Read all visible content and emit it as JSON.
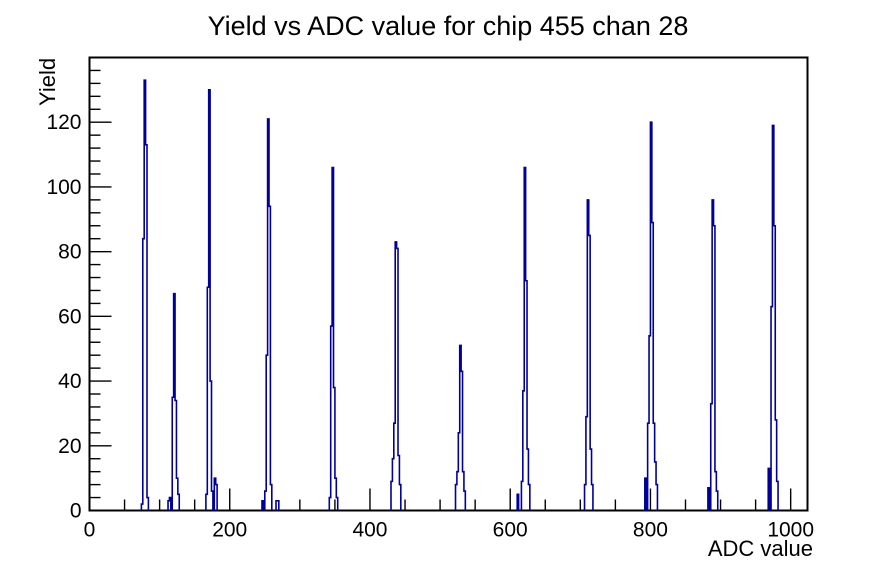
{
  "title": "Yield vs ADC value for chip 455 chan 28",
  "chart_data": {
    "type": "bar",
    "subtype": "histogram-outline",
    "title": "Yield vs ADC value for chip 455 chan 28",
    "xlabel": "ADC value",
    "ylabel": "Yield",
    "xlim": [
      0,
      1024
    ],
    "ylim": [
      0,
      140
    ],
    "x_major_ticks": [
      0,
      200,
      400,
      600,
      800,
      1000
    ],
    "x_major_tick_labels": [
      "0",
      "200",
      "400",
      "600",
      "800",
      "1000"
    ],
    "x_minor_step": 50,
    "y_major_ticks": [
      0,
      20,
      40,
      60,
      80,
      100,
      120
    ],
    "y_major_tick_labels": [
      "0",
      "20",
      "40",
      "60",
      "80",
      "100",
      "120"
    ],
    "y_minor_step": 4,
    "grid": false,
    "legend": false,
    "line_color": "#000099",
    "axis_color": "#000000",
    "background_color": "#ffffff",
    "bin_width": 2,
    "peaks": [
      {
        "adc": 79,
        "yield": 133
      },
      {
        "adc": 121,
        "yield": 67
      },
      {
        "adc": 171,
        "yield": 130
      },
      {
        "adc": 255,
        "yield": 121
      },
      {
        "adc": 347,
        "yield": 106
      },
      {
        "adc": 437,
        "yield": 83
      },
      {
        "adc": 529,
        "yield": 51
      },
      {
        "adc": 621,
        "yield": 106
      },
      {
        "adc": 711,
        "yield": 96
      },
      {
        "adc": 801,
        "yield": 120
      },
      {
        "adc": 889,
        "yield": 96
      },
      {
        "adc": 975,
        "yield": 119
      }
    ],
    "bins": [
      [
        75,
        2
      ],
      [
        77,
        84
      ],
      [
        79,
        133
      ],
      [
        81,
        113
      ],
      [
        83,
        4
      ],
      [
        113,
        3
      ],
      [
        115,
        4
      ],
      [
        119,
        35
      ],
      [
        121,
        67
      ],
      [
        123,
        34
      ],
      [
        125,
        10
      ],
      [
        127,
        5
      ],
      [
        167,
        5
      ],
      [
        169,
        69
      ],
      [
        171,
        130
      ],
      [
        173,
        40
      ],
      [
        175,
        6
      ],
      [
        179,
        10
      ],
      [
        181,
        8
      ],
      [
        247,
        3
      ],
      [
        251,
        6
      ],
      [
        253,
        48
      ],
      [
        255,
        121
      ],
      [
        257,
        94
      ],
      [
        259,
        8
      ],
      [
        267,
        3
      ],
      [
        269,
        3
      ],
      [
        343,
        4
      ],
      [
        345,
        57
      ],
      [
        347,
        106
      ],
      [
        349,
        38
      ],
      [
        351,
        10
      ],
      [
        353,
        4
      ],
      [
        431,
        9
      ],
      [
        433,
        16
      ],
      [
        435,
        27
      ],
      [
        437,
        83
      ],
      [
        439,
        81
      ],
      [
        441,
        17
      ],
      [
        443,
        8
      ],
      [
        523,
        8
      ],
      [
        525,
        12
      ],
      [
        527,
        24
      ],
      [
        529,
        51
      ],
      [
        531,
        43
      ],
      [
        533,
        12
      ],
      [
        535,
        6
      ],
      [
        611,
        5
      ],
      [
        617,
        9
      ],
      [
        619,
        37
      ],
      [
        621,
        106
      ],
      [
        623,
        71
      ],
      [
        625,
        19
      ],
      [
        627,
        8
      ],
      [
        707,
        8
      ],
      [
        709,
        29
      ],
      [
        711,
        96
      ],
      [
        713,
        85
      ],
      [
        715,
        19
      ],
      [
        717,
        8
      ],
      [
        793,
        10
      ],
      [
        797,
        27
      ],
      [
        799,
        54
      ],
      [
        801,
        120
      ],
      [
        803,
        89
      ],
      [
        805,
        27
      ],
      [
        807,
        15
      ],
      [
        809,
        8
      ],
      [
        883,
        7
      ],
      [
        887,
        33
      ],
      [
        889,
        96
      ],
      [
        891,
        88
      ],
      [
        893,
        12
      ],
      [
        895,
        6
      ],
      [
        969,
        13
      ],
      [
        973,
        63
      ],
      [
        975,
        119
      ],
      [
        977,
        88
      ],
      [
        979,
        28
      ],
      [
        981,
        9
      ]
    ]
  }
}
